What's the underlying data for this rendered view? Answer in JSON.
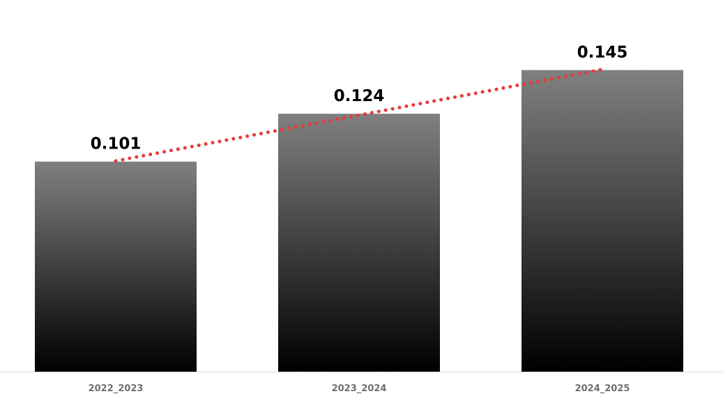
{
  "chart_data": {
    "type": "bar",
    "categories": [
      "2022_2023",
      "2023_2024",
      "2024_2025"
    ],
    "values": [
      0.101,
      0.124,
      0.145
    ],
    "data_labels": [
      "0.101",
      "0.124",
      "0.145"
    ],
    "title": "",
    "xlabel": "",
    "ylabel": "",
    "ylim": [
      0,
      0.1465
    ],
    "grid": false,
    "legend": "none",
    "trendline": {
      "type": "linear",
      "style": "dotted",
      "color": "#e83b3b"
    },
    "bar_gradient": [
      "#808080",
      "#000000"
    ],
    "axis_color": "#d9d9d9"
  }
}
